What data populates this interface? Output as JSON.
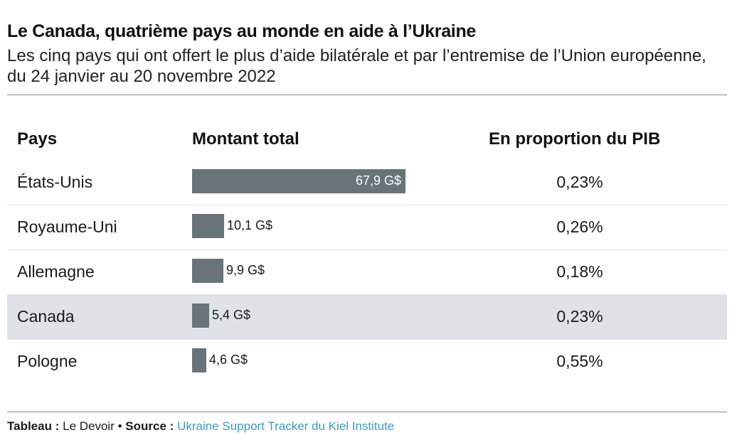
{
  "title": "Le Canada, quatrième pays au monde en aide à l’Ukraine",
  "subtitle": "Les cinq pays qui ont offert le plus d’aide bilatérale et par l’entremise de l’Union européenne, du 24 janvier au 20 novembre 2022",
  "table": {
    "headers": [
      "Pays",
      "Montant total",
      "En proportion du PIB"
    ]
  },
  "chart_data": {
    "type": "bar",
    "title": "Le Canada, quatrième pays au monde en aide à l’Ukraine",
    "categories": [
      "États-Unis",
      "Royaume-Uni",
      "Allemagne",
      "Canada",
      "Pologne"
    ],
    "values": [
      67.9,
      10.1,
      9.9,
      5.4,
      4.6
    ],
    "value_labels": [
      "67,9 G$",
      "10,1 G$",
      "9,9 G$",
      "5,4 G$",
      "4,6 G$"
    ],
    "gdp_share": [
      "0,23%",
      "0,26%",
      "0,18%",
      "0,23%",
      "0,55%"
    ],
    "highlighted": "Canada",
    "bar_color": "#687479",
    "highlight_color": "#dfe3e8",
    "xlim": [
      0,
      67.9
    ]
  },
  "footer": {
    "label1": "Tableau :",
    "value1": "Le Devoir",
    "separator": "•",
    "label2": "Source :",
    "value2": "Ukraine Support Tracker du Kiel Institute"
  }
}
